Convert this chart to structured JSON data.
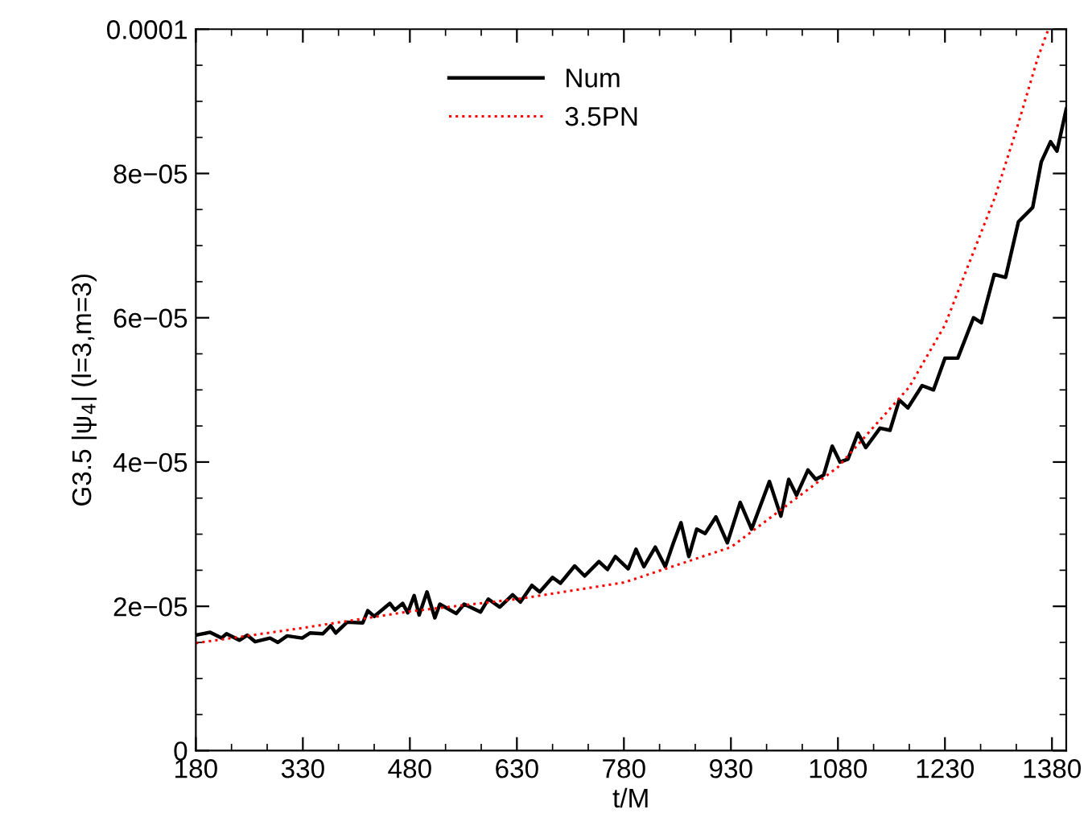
{
  "chart_data": {
    "type": "line",
    "xlabel": "t/M",
    "ylabel": "G3.5 |ψ$_{4}$| (l=3,m=3)",
    "xlim": [
      180,
      1400
    ],
    "ylim": [
      0,
      0.0001
    ],
    "xticks": [
      180,
      330,
      480,
      630,
      780,
      930,
      1080,
      1230,
      1380
    ],
    "yticks": [
      0,
      {
        "value": 2e-05,
        "label": "2e−05"
      },
      {
        "value": 4e-05,
        "label": "4e−05"
      },
      {
        "value": 6e-05,
        "label": "6e−05"
      },
      {
        "value": 8e-05,
        "label": "8e−05"
      },
      0.0001
    ],
    "grid": false,
    "legend": "top",
    "marker": "none",
    "series": [
      {
        "name": "Num",
        "color": "#000000",
        "line_style": "solid",
        "x": [
          180,
          200,
          216,
          223,
          241,
          252,
          263,
          284,
          295,
          308,
          329,
          340,
          358,
          369,
          376,
          392,
          414,
          421,
          430,
          452,
          459,
          470,
          477,
          486,
          493,
          504,
          515,
          522,
          545,
          556,
          579,
          590,
          606,
          624,
          635,
          651,
          662,
          680,
          691,
          711,
          725,
          745,
          757,
          768,
          786,
          797,
          808,
          824,
          838,
          849,
          860,
          871,
          882,
          894,
          909,
          925,
          943,
          959,
          984,
          1000,
          1011,
          1022,
          1038,
          1049,
          1060,
          1072,
          1083,
          1094,
          1108,
          1119,
          1139,
          1153,
          1166,
          1178,
          1198,
          1214,
          1230,
          1248,
          1270,
          1281,
          1299,
          1315,
          1333,
          1353,
          1365,
          1378,
          1387,
          1400
        ],
        "values": [
          1.6e-05,
          1.64e-05,
          1.56e-05,
          1.62e-05,
          1.53e-05,
          1.6e-05,
          1.51e-05,
          1.56e-05,
          1.5e-05,
          1.59e-05,
          1.56e-05,
          1.63e-05,
          1.62e-05,
          1.73e-05,
          1.63e-05,
          1.78e-05,
          1.77e-05,
          1.94e-05,
          1.86e-05,
          2.04e-05,
          1.95e-05,
          2.04e-05,
          1.91e-05,
          2.15e-05,
          1.88e-05,
          2.2e-05,
          1.84e-05,
          2.03e-05,
          1.9e-05,
          2.03e-05,
          1.92e-05,
          2.1e-05,
          1.99e-05,
          2.16e-05,
          2.06e-05,
          2.29e-05,
          2.2e-05,
          2.4e-05,
          2.32e-05,
          2.56e-05,
          2.42e-05,
          2.62e-05,
          2.51e-05,
          2.69e-05,
          2.52e-05,
          2.79e-05,
          2.55e-05,
          2.82e-05,
          2.55e-05,
          2.87e-05,
          3.16e-05,
          2.69e-05,
          3.07e-05,
          3.01e-05,
          3.24e-05,
          2.88e-05,
          3.44e-05,
          3.07e-05,
          3.73e-05,
          3.25e-05,
          3.76e-05,
          3.54e-05,
          3.89e-05,
          3.76e-05,
          3.82e-05,
          4.22e-05,
          4e-05,
          4.04e-05,
          4.4e-05,
          4.2e-05,
          4.47e-05,
          4.44e-05,
          4.86e-05,
          4.75e-05,
          5.06e-05,
          5e-05,
          5.44e-05,
          5.44e-05,
          6e-05,
          5.93e-05,
          6.6e-05,
          6.56e-05,
          7.33e-05,
          7.53e-05,
          8.16e-05,
          8.44e-05,
          8.31e-05,
          8.89e-05
        ]
      },
      {
        "name": "3.5PN",
        "color": "#ff0000",
        "line_style": "dotted",
        "x": [
          180,
          330,
          480,
          630,
          780,
          930,
          1080,
          1180,
          1230,
          1300,
          1330,
          1360,
          1375
        ],
        "values": [
          1.49e-05,
          1.7e-05,
          1.93e-05,
          2.1e-05,
          2.33e-05,
          2.82e-05,
          3.93e-05,
          5.04e-05,
          5.9e-05,
          7.67e-05,
          8.6e-05,
          9.6e-05,
          0.0001
        ]
      }
    ]
  }
}
